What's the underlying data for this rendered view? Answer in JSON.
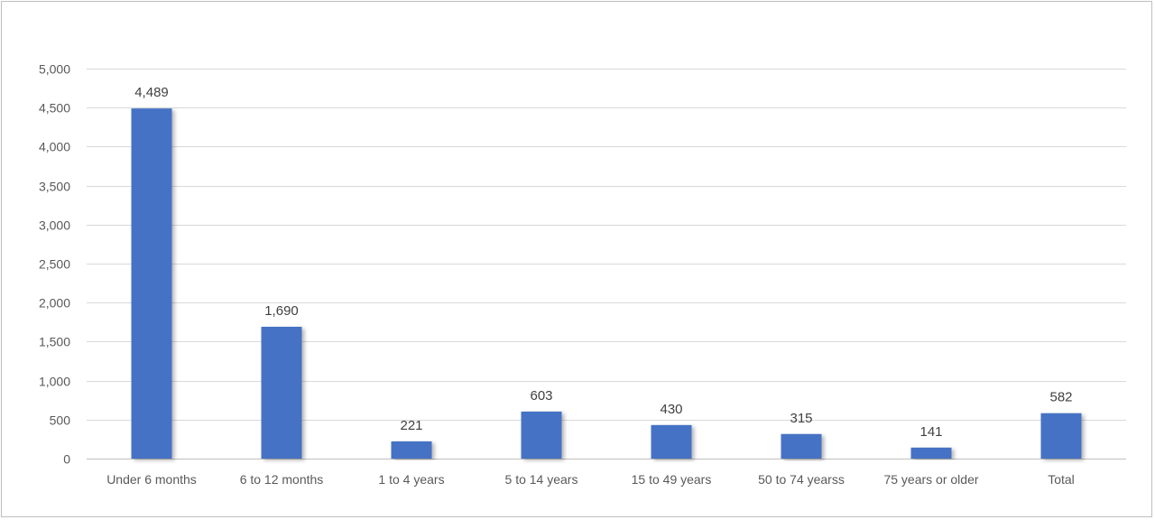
{
  "chart_data": {
    "type": "bar",
    "categories": [
      "Under 6 months",
      "6 to 12 months",
      "1 to 4 years",
      "5 to 14 years",
      "15 to 49 years",
      "50 to 74 yearss",
      "75 years or older",
      "Total"
    ],
    "values": [
      4489,
      1690,
      221,
      603,
      430,
      315,
      141,
      582
    ],
    "data_labels": [
      "4,489",
      "1,690",
      "221",
      "603",
      "430",
      "315",
      "141",
      "582"
    ],
    "y_ticks": [
      0,
      500,
      1000,
      1500,
      2000,
      2500,
      3000,
      3500,
      4000,
      4500,
      5000
    ],
    "y_tick_labels": [
      "0",
      "500",
      "1,000",
      "1,500",
      "2,000",
      "2,500",
      "3,000",
      "3,500",
      "4,000",
      "4,500",
      "5,000"
    ],
    "ylim": [
      0,
      5000
    ],
    "title": "",
    "xlabel": "",
    "ylabel": "",
    "grid": true,
    "legend": "none",
    "bar_color": "#4472c4"
  }
}
